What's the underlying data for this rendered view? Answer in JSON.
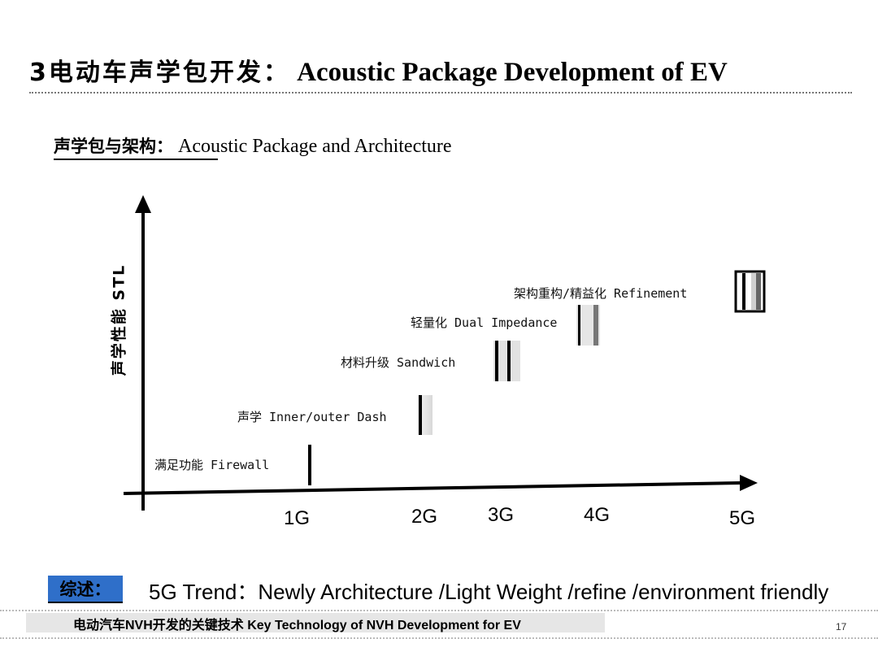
{
  "header": {
    "title_zh": "3电动车声学包开发：",
    "title_en": "Acoustic Package Development of  EV"
  },
  "section": {
    "subtitle_zh": "声学包与架构：",
    "subtitle_en": "Acoustic Package and Architecture"
  },
  "diagram": {
    "y_axis_label": "声学性能 STL",
    "generations": [
      {
        "label": "1G",
        "step": "满足功能 Firewall"
      },
      {
        "label": "2G",
        "step": "声学 Inner/outer Dash"
      },
      {
        "label": "3G",
        "step": "材料升级 Sandwich"
      },
      {
        "label": "4G",
        "step": "轻量化 Dual Impedance"
      },
      {
        "label": "5G",
        "step": "架构重构/精益化  Refinement"
      }
    ]
  },
  "summary": {
    "tag": "综述：",
    "text": "5G Trend：Newly Architecture /Light Weight /refine /environment friendly"
  },
  "footer": {
    "text": "电动汽车NVH开发的关键技术  Key Technology of NVH Development for EV",
    "page": "17"
  },
  "colors": {
    "summary_tag_bg": "#2f6fc9",
    "footer_bar_bg": "#e6e6e6"
  }
}
